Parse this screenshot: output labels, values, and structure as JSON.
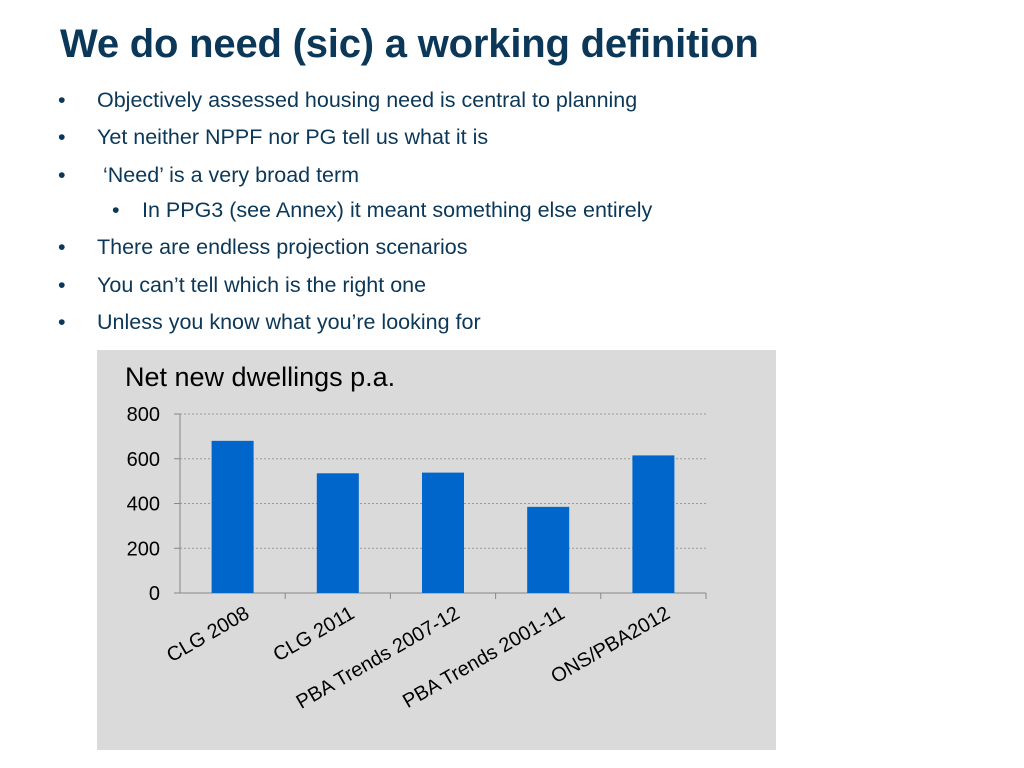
{
  "slide": {
    "title": "We do need (sic) a working definition",
    "bullets": [
      {
        "text": "Objectively assessed housing need is central to planning",
        "level": 1
      },
      {
        "text": "Yet neither NPPF nor PG tell us what it is",
        "level": 1
      },
      {
        "text": " ‘Need’ is a very broad term",
        "level": 1
      },
      {
        "text": "In PPG3 (see Annex) it meant something else entirely",
        "level": 2
      },
      {
        "text": "There are endless projection scenarios",
        "level": 1
      },
      {
        "text": "You can’t tell which is the right one",
        "level": 1
      },
      {
        "text": "Unless you know what you’re looking for",
        "level": 1
      }
    ],
    "bullet_glyph": "•"
  },
  "chart_data": {
    "type": "bar",
    "title": "Net new dwellings p.a.",
    "categories": [
      "CLG 2008",
      "CLG 2011",
      "PBA Trends 2007-12",
      "PBA Trends 2001-11",
      "ONS/PBA2012"
    ],
    "values": [
      680,
      535,
      538,
      385,
      615
    ],
    "ylim": [
      0,
      800
    ],
    "yticks": [
      0,
      200,
      400,
      600,
      800
    ],
    "grid": true,
    "bar_color": "#0066cc",
    "background": "#dadada"
  }
}
